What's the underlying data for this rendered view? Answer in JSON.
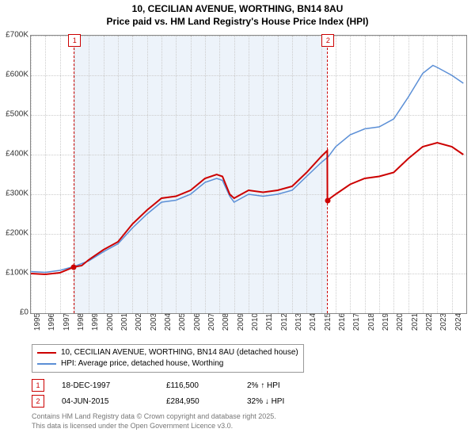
{
  "title": {
    "line1": "10, CECILIAN AVENUE, WORTHING, BN14 8AU",
    "line2": "Price paid vs. HM Land Registry's House Price Index (HPI)"
  },
  "colors": {
    "series_property": "#cc0000",
    "series_hpi": "#5b8fd6",
    "grid": "#cccccc",
    "shade": "#e6eef8",
    "axis": "#888888",
    "marker_border": "#cc0000",
    "footnote": "#777777"
  },
  "chart": {
    "type": "line",
    "ylim": [
      0,
      700000
    ],
    "ytick_step": 100000,
    "yticks": [
      "£0",
      "£100K",
      "£200K",
      "£300K",
      "£400K",
      "£500K",
      "£600K",
      "£700K"
    ],
    "xlim": [
      1995,
      2025
    ],
    "xticks": [
      1995,
      1996,
      1997,
      1998,
      1999,
      2000,
      2001,
      2002,
      2003,
      2004,
      2005,
      2006,
      2007,
      2008,
      2009,
      2010,
      2011,
      2012,
      2013,
      2014,
      2015,
      2016,
      2017,
      2018,
      2019,
      2020,
      2021,
      2022,
      2023,
      2024
    ],
    "shade_from": 1997.96,
    "shade_to": 2015.42,
    "ref_lines": [
      {
        "x": 1997.96,
        "label": "1"
      },
      {
        "x": 2015.42,
        "label": "2"
      }
    ],
    "series_property": {
      "label": "10, CECILIAN AVENUE, WORTHING, BN14 8AU (detached house)",
      "line_width": 2,
      "data": [
        [
          1995,
          100000
        ],
        [
          1996,
          98000
        ],
        [
          1997,
          102000
        ],
        [
          1997.96,
          116500
        ],
        [
          1998.5,
          120000
        ],
        [
          1999,
          135000
        ],
        [
          2000,
          160000
        ],
        [
          2001,
          180000
        ],
        [
          2002,
          225000
        ],
        [
          2003,
          260000
        ],
        [
          2004,
          290000
        ],
        [
          2005,
          295000
        ],
        [
          2006,
          310000
        ],
        [
          2007,
          340000
        ],
        [
          2007.8,
          350000
        ],
        [
          2008.2,
          345000
        ],
        [
          2008.7,
          300000
        ],
        [
          2009,
          290000
        ],
        [
          2009.5,
          300000
        ],
        [
          2010,
          310000
        ],
        [
          2011,
          305000
        ],
        [
          2012,
          310000
        ],
        [
          2013,
          320000
        ],
        [
          2014,
          355000
        ],
        [
          2015,
          395000
        ],
        [
          2015.42,
          410000
        ],
        [
          2015.43,
          284950
        ],
        [
          2016,
          300000
        ],
        [
          2017,
          325000
        ],
        [
          2018,
          340000
        ],
        [
          2019,
          345000
        ],
        [
          2020,
          355000
        ],
        [
          2021,
          390000
        ],
        [
          2022,
          420000
        ],
        [
          2023,
          430000
        ],
        [
          2024,
          420000
        ],
        [
          2024.8,
          400000
        ]
      ],
      "points": [
        {
          "x": 1997.96,
          "y": 116500
        },
        {
          "x": 2015.43,
          "y": 284950
        }
      ]
    },
    "series_hpi": {
      "label": "HPI: Average price, detached house, Worthing",
      "line_width": 1.5,
      "data": [
        [
          1995,
          105000
        ],
        [
          1996,
          103000
        ],
        [
          1997,
          108000
        ],
        [
          1998,
          118000
        ],
        [
          1999,
          132000
        ],
        [
          2000,
          155000
        ],
        [
          2001,
          175000
        ],
        [
          2002,
          215000
        ],
        [
          2003,
          250000
        ],
        [
          2004,
          280000
        ],
        [
          2005,
          285000
        ],
        [
          2006,
          300000
        ],
        [
          2007,
          330000
        ],
        [
          2007.8,
          340000
        ],
        [
          2008.2,
          335000
        ],
        [
          2008.7,
          295000
        ],
        [
          2009,
          280000
        ],
        [
          2009.5,
          290000
        ],
        [
          2010,
          300000
        ],
        [
          2011,
          295000
        ],
        [
          2012,
          300000
        ],
        [
          2013,
          310000
        ],
        [
          2014,
          345000
        ],
        [
          2015,
          380000
        ],
        [
          2015.5,
          395000
        ],
        [
          2016,
          420000
        ],
        [
          2017,
          450000
        ],
        [
          2018,
          465000
        ],
        [
          2019,
          470000
        ],
        [
          2020,
          490000
        ],
        [
          2021,
          545000
        ],
        [
          2022,
          605000
        ],
        [
          2022.7,
          625000
        ],
        [
          2023,
          620000
        ],
        [
          2024,
          600000
        ],
        [
          2024.8,
          580000
        ]
      ]
    }
  },
  "legend": {
    "items": [
      {
        "color": "#cc0000",
        "label": "10, CECILIAN AVENUE, WORTHING, BN14 8AU (detached house)"
      },
      {
        "color": "#5b8fd6",
        "label": "HPI: Average price, detached house, Worthing"
      }
    ]
  },
  "sales": [
    {
      "n": "1",
      "date": "18-DEC-1997",
      "price": "£116,500",
      "delta": "2% ↑ HPI"
    },
    {
      "n": "2",
      "date": "04-JUN-2015",
      "price": "£284,950",
      "delta": "32% ↓ HPI"
    }
  ],
  "footnote": {
    "line1": "Contains HM Land Registry data © Crown copyright and database right 2025.",
    "line2": "This data is licensed under the Open Government Licence v3.0."
  }
}
